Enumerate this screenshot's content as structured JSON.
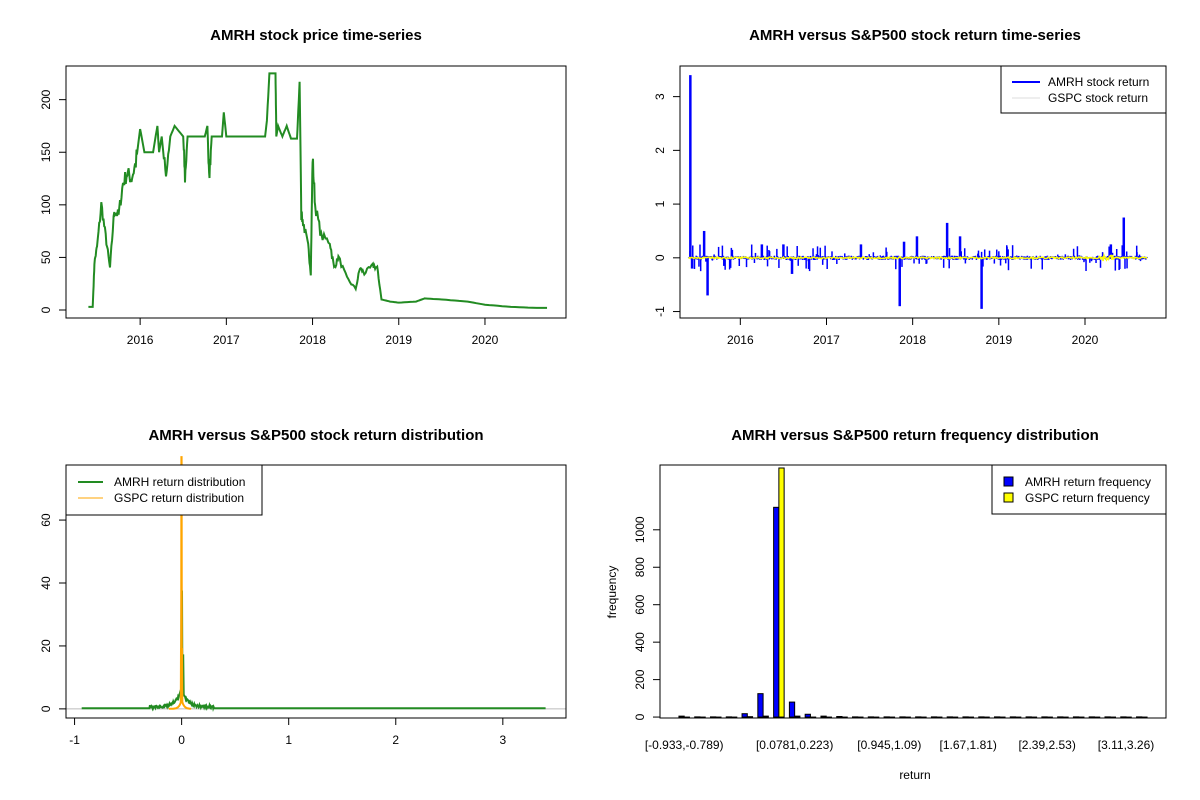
{
  "colors": {
    "amrh_price": "#228B22",
    "amrh_return": "#0000FF",
    "gspc_return": "#FFFF00",
    "amrh_density": "#228B22",
    "gspc_density": "#FFA500",
    "amrh_bar": "#0000FF",
    "gspc_bar": "#FFFF00"
  },
  "chart_data": [
    {
      "type": "line",
      "title": "AMRH stock price time-series",
      "xlabel": "",
      "ylabel": "",
      "xlim": [
        2015.14,
        2020.94
      ],
      "ylim": [
        -7.6,
        232
      ],
      "xticks": [
        2016,
        2017,
        2018,
        2019,
        2020
      ],
      "yticks": [
        0,
        50,
        100,
        150,
        200
      ],
      "series": [
        {
          "name": "AMRH price",
          "points": [
            [
              2015.4,
              3
            ],
            [
              2015.45,
              3
            ],
            [
              2015.47,
              45
            ],
            [
              2015.5,
              60
            ],
            [
              2015.55,
              100
            ],
            [
              2015.6,
              70
            ],
            [
              2015.65,
              40
            ],
            [
              2015.7,
              95
            ],
            [
              2015.75,
              90
            ],
            [
              2015.8,
              120
            ],
            [
              2015.85,
              130
            ],
            [
              2015.9,
              125
            ],
            [
              2015.95,
              140
            ],
            [
              2016.0,
              172
            ],
            [
              2016.05,
              150
            ],
            [
              2016.15,
              150
            ],
            [
              2016.2,
              175
            ],
            [
              2016.22,
              150
            ],
            [
              2016.25,
              165
            ],
            [
              2016.3,
              125
            ],
            [
              2016.35,
              165
            ],
            [
              2016.4,
              175
            ],
            [
              2016.5,
              165
            ],
            [
              2016.52,
              125
            ],
            [
              2016.55,
              165
            ],
            [
              2016.75,
              165
            ],
            [
              2016.78,
              175
            ],
            [
              2016.8,
              125
            ],
            [
              2016.83,
              165
            ],
            [
              2016.95,
              165
            ],
            [
              2016.97,
              188
            ],
            [
              2017.0,
              165
            ],
            [
              2017.45,
              165
            ],
            [
              2017.47,
              180
            ],
            [
              2017.5,
              225
            ],
            [
              2017.57,
              225
            ],
            [
              2017.58,
              165
            ],
            [
              2017.6,
              175
            ],
            [
              2017.65,
              165
            ],
            [
              2017.7,
              175
            ],
            [
              2017.75,
              163
            ],
            [
              2017.82,
              163
            ],
            [
              2017.85,
              217
            ],
            [
              2017.87,
              90
            ],
            [
              2017.9,
              80
            ],
            [
              2017.95,
              60
            ],
            [
              2017.98,
              35
            ],
            [
              2018.0,
              145
            ],
            [
              2018.03,
              100
            ],
            [
              2018.1,
              70
            ],
            [
              2018.2,
              65
            ],
            [
              2018.25,
              40
            ],
            [
              2018.3,
              50
            ],
            [
              2018.4,
              30
            ],
            [
              2018.5,
              20
            ],
            [
              2018.55,
              40
            ],
            [
              2018.6,
              35
            ],
            [
              2018.7,
              42
            ],
            [
              2018.75,
              40
            ],
            [
              2018.8,
              10
            ],
            [
              2018.9,
              8
            ],
            [
              2019.0,
              7
            ],
            [
              2019.2,
              8
            ],
            [
              2019.3,
              11
            ],
            [
              2019.5,
              10
            ],
            [
              2019.8,
              8
            ],
            [
              2020.0,
              5
            ],
            [
              2020.3,
              3
            ],
            [
              2020.6,
              2
            ],
            [
              2020.72,
              2
            ]
          ]
        }
      ]
    },
    {
      "type": "line",
      "title": "AMRH versus S&P500 stock return time-series",
      "xlim": [
        2015.3,
        2020.94
      ],
      "ylim": [
        -1.12,
        3.57
      ],
      "xticks": [
        2016,
        2017,
        2018,
        2019,
        2020
      ],
      "yticks": [
        -1,
        0,
        1,
        2,
        3
      ],
      "legend": {
        "position": "top-right",
        "entries": [
          "AMRH stock return",
          "GSPC stock return"
        ]
      },
      "series": [
        {
          "name": "AMRH stock return",
          "spikes": [
            [
              2015.42,
              3.4
            ],
            [
              2015.44,
              -0.2
            ],
            [
              2015.58,
              0.5
            ],
            [
              2015.62,
              -0.7
            ],
            [
              2016.25,
              0.25
            ],
            [
              2016.5,
              0.25
            ],
            [
              2016.6,
              -0.3
            ],
            [
              2017.4,
              0.25
            ],
            [
              2017.85,
              -0.9
            ],
            [
              2017.9,
              0.3
            ],
            [
              2018.05,
              0.4
            ],
            [
              2018.4,
              0.65
            ],
            [
              2018.55,
              0.4
            ],
            [
              2018.8,
              -0.95
            ],
            [
              2020.3,
              0.25
            ],
            [
              2020.45,
              0.75
            ]
          ]
        },
        {
          "name": "GSPC stock return",
          "range": [
            -0.12,
            0.09
          ]
        }
      ]
    },
    {
      "type": "line",
      "title": "AMRH versus S&P500 stock return distribution",
      "xlim": [
        -1.08,
        3.59
      ],
      "ylim": [
        -2.9,
        77.5
      ],
      "xticks": [
        -1,
        0,
        1,
        2,
        3
      ],
      "yticks": [
        0,
        20,
        40,
        60
      ],
      "legend": {
        "position": "top-left",
        "entries": [
          "AMRH return distribution",
          "GSPC return distribution"
        ]
      },
      "series": [
        {
          "name": "AMRH return distribution",
          "peak": 37,
          "support": [
            -0.933,
            3.4
          ]
        },
        {
          "name": "GSPC return distribution",
          "peak": 80,
          "support": [
            -0.12,
            0.09
          ]
        }
      ]
    },
    {
      "type": "bar",
      "title": "AMRH versus S&P500 return frequency distribution",
      "xlabel": "return",
      "ylabel": "frequency",
      "ylim": [
        -5,
        1346
      ],
      "yticks": [
        0,
        200,
        400,
        600,
        800,
        1000
      ],
      "bin_count": 30,
      "tick_labels": [
        {
          "bin": 0,
          "label": "[-0.933,-0.789)"
        },
        {
          "bin": 7,
          "label": "[0.0781,0.223)"
        },
        {
          "bin": 13,
          "label": "[0.945,1.09)"
        },
        {
          "bin": 18,
          "label": "[1.67,1.81)"
        },
        {
          "bin": 23,
          "label": "[2.39,2.53)"
        },
        {
          "bin": 28,
          "label": "[3.11,3.26)"
        }
      ],
      "legend": {
        "position": "top-right",
        "entries": [
          "AMRH return frequency",
          "GSPC return frequency"
        ]
      },
      "series": [
        {
          "name": "AMRH return frequency",
          "values": [
            5,
            1,
            1,
            1,
            18,
            125,
            1120,
            80,
            15,
            5,
            3,
            1,
            1,
            1,
            1,
            1,
            1,
            1,
            1,
            1,
            1,
            1,
            1,
            1,
            1,
            1,
            1,
            1,
            1,
            1
          ]
        },
        {
          "name": "GSPC return frequency",
          "values": [
            0,
            0,
            0,
            0,
            2,
            5,
            1330,
            5,
            0,
            0,
            0,
            0,
            0,
            0,
            0,
            0,
            0,
            0,
            0,
            0,
            0,
            0,
            0,
            0,
            0,
            0,
            0,
            0,
            0,
            0
          ]
        }
      ]
    }
  ]
}
